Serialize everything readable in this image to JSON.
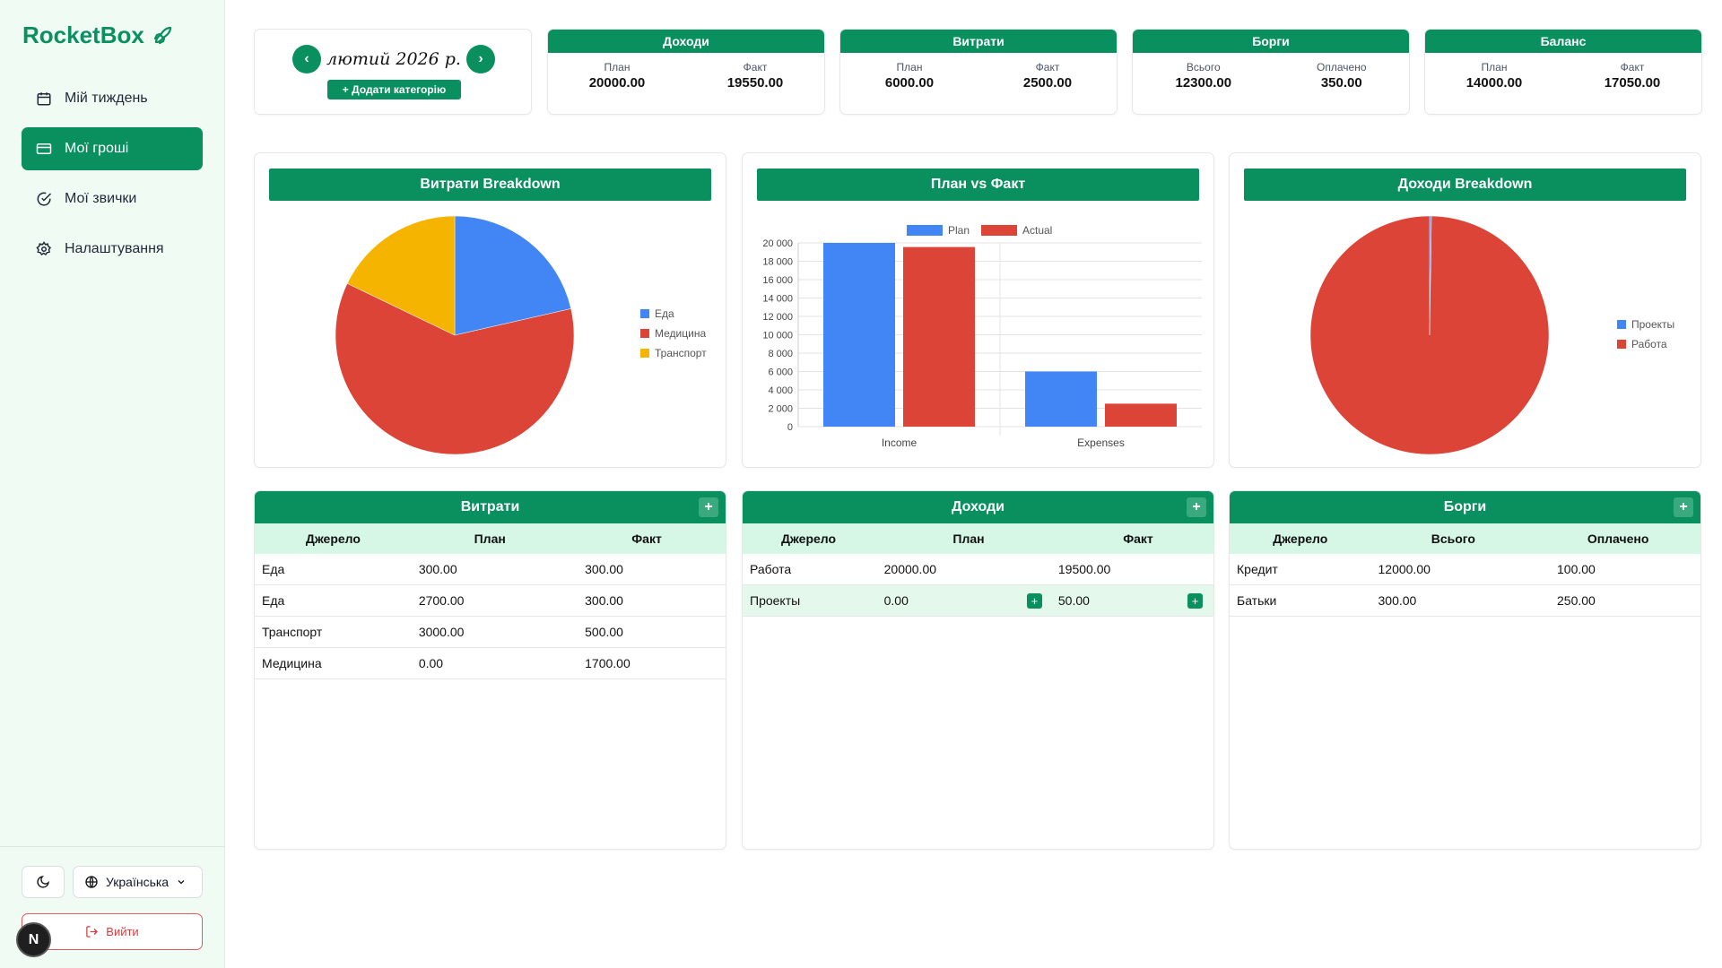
{
  "app": {
    "name": "RocketBox"
  },
  "nav": [
    {
      "label": "Мій тиждень",
      "icon": "calendar-icon"
    },
    {
      "label": "Мої гроші",
      "icon": "credit-card-icon",
      "active": true
    },
    {
      "label": "Мої звички",
      "icon": "check-circle-icon"
    },
    {
      "label": "Налаштування",
      "icon": "gear-icon"
    }
  ],
  "footer": {
    "language": "Українська",
    "logout": "Вийти",
    "badge": "N"
  },
  "month": {
    "label": "лютий 2026 р.",
    "add_category": "+ Додати категорію",
    "prev": "‹",
    "next": "›"
  },
  "stats": [
    {
      "title": "Доходи",
      "labels": [
        "План",
        "Факт"
      ],
      "values": [
        "20000.00",
        "19550.00"
      ]
    },
    {
      "title": "Витрати",
      "labels": [
        "План",
        "Факт"
      ],
      "values": [
        "6000.00",
        "2500.00"
      ]
    },
    {
      "title": "Борги",
      "labels": [
        "Всього",
        "Оплачено"
      ],
      "values": [
        "12300.00",
        "350.00"
      ]
    },
    {
      "title": "Баланс",
      "labels": [
        "План",
        "Факт"
      ],
      "values": [
        "14000.00",
        "17050.00"
      ]
    }
  ],
  "charts": {
    "expenses_title": "Витрати Breakdown",
    "planfact_title": "План vs Факт",
    "income_title": "Доходи Breakdown"
  },
  "chart_data": [
    {
      "type": "pie",
      "title": "Витрати Breakdown",
      "labels": [
        "Еда",
        "Медицина",
        "Транспорт"
      ],
      "values": [
        600,
        1700,
        500
      ],
      "colors": [
        "#4285f4",
        "#db4437",
        "#f4b400"
      ],
      "legend": "right"
    },
    {
      "type": "bar",
      "title": "План vs Факт",
      "categories": [
        "Income",
        "Expenses"
      ],
      "series": [
        {
          "name": "Plan",
          "values": [
            20000,
            6000
          ],
          "color": "#4285f4"
        },
        {
          "name": "Actual",
          "values": [
            19550,
            2500
          ],
          "color": "#db4437"
        }
      ],
      "ylim": [
        0,
        20000
      ],
      "yticks": [
        "0",
        "2 000",
        "4 000",
        "6 000",
        "8 000",
        "10 000",
        "12 000",
        "14 000",
        "16 000",
        "18 000",
        "20 000"
      ],
      "legend": "top"
    },
    {
      "type": "pie",
      "title": "Доходи Breakdown",
      "labels": [
        "Проекты",
        "Работа"
      ],
      "values": [
        50,
        19500
      ],
      "colors": [
        "#4285f4",
        "#db4437"
      ],
      "legend": "right"
    }
  ],
  "tables": {
    "expenses": {
      "title": "Витрати",
      "columns": [
        "Джерело",
        "План",
        "Факт"
      ],
      "rows": [
        [
          "Еда",
          "300.00",
          "300.00"
        ],
        [
          "Еда",
          "2700.00",
          "300.00"
        ],
        [
          "Транспорт",
          "3000.00",
          "500.00"
        ],
        [
          "Медицина",
          "0.00",
          "1700.00"
        ]
      ]
    },
    "income": {
      "title": "Доходи",
      "columns": [
        "Джерело",
        "План",
        "Факт"
      ],
      "rows": [
        [
          "Работа",
          "20000.00",
          "19500.00"
        ],
        [
          "Проекты",
          "0.00",
          "50.00"
        ]
      ]
    },
    "debts": {
      "title": "Борги",
      "columns": [
        "Джерело",
        "Всього",
        "Оплачено"
      ],
      "rows": [
        [
          "Кредит",
          "12000.00",
          "100.00"
        ],
        [
          "Батьки",
          "300.00",
          "250.00"
        ]
      ]
    }
  },
  "colors": {
    "accent": "#0a8f5f",
    "sidebar_bg": "#f0fbf4",
    "table_header_bg": "#d6f7e6"
  }
}
